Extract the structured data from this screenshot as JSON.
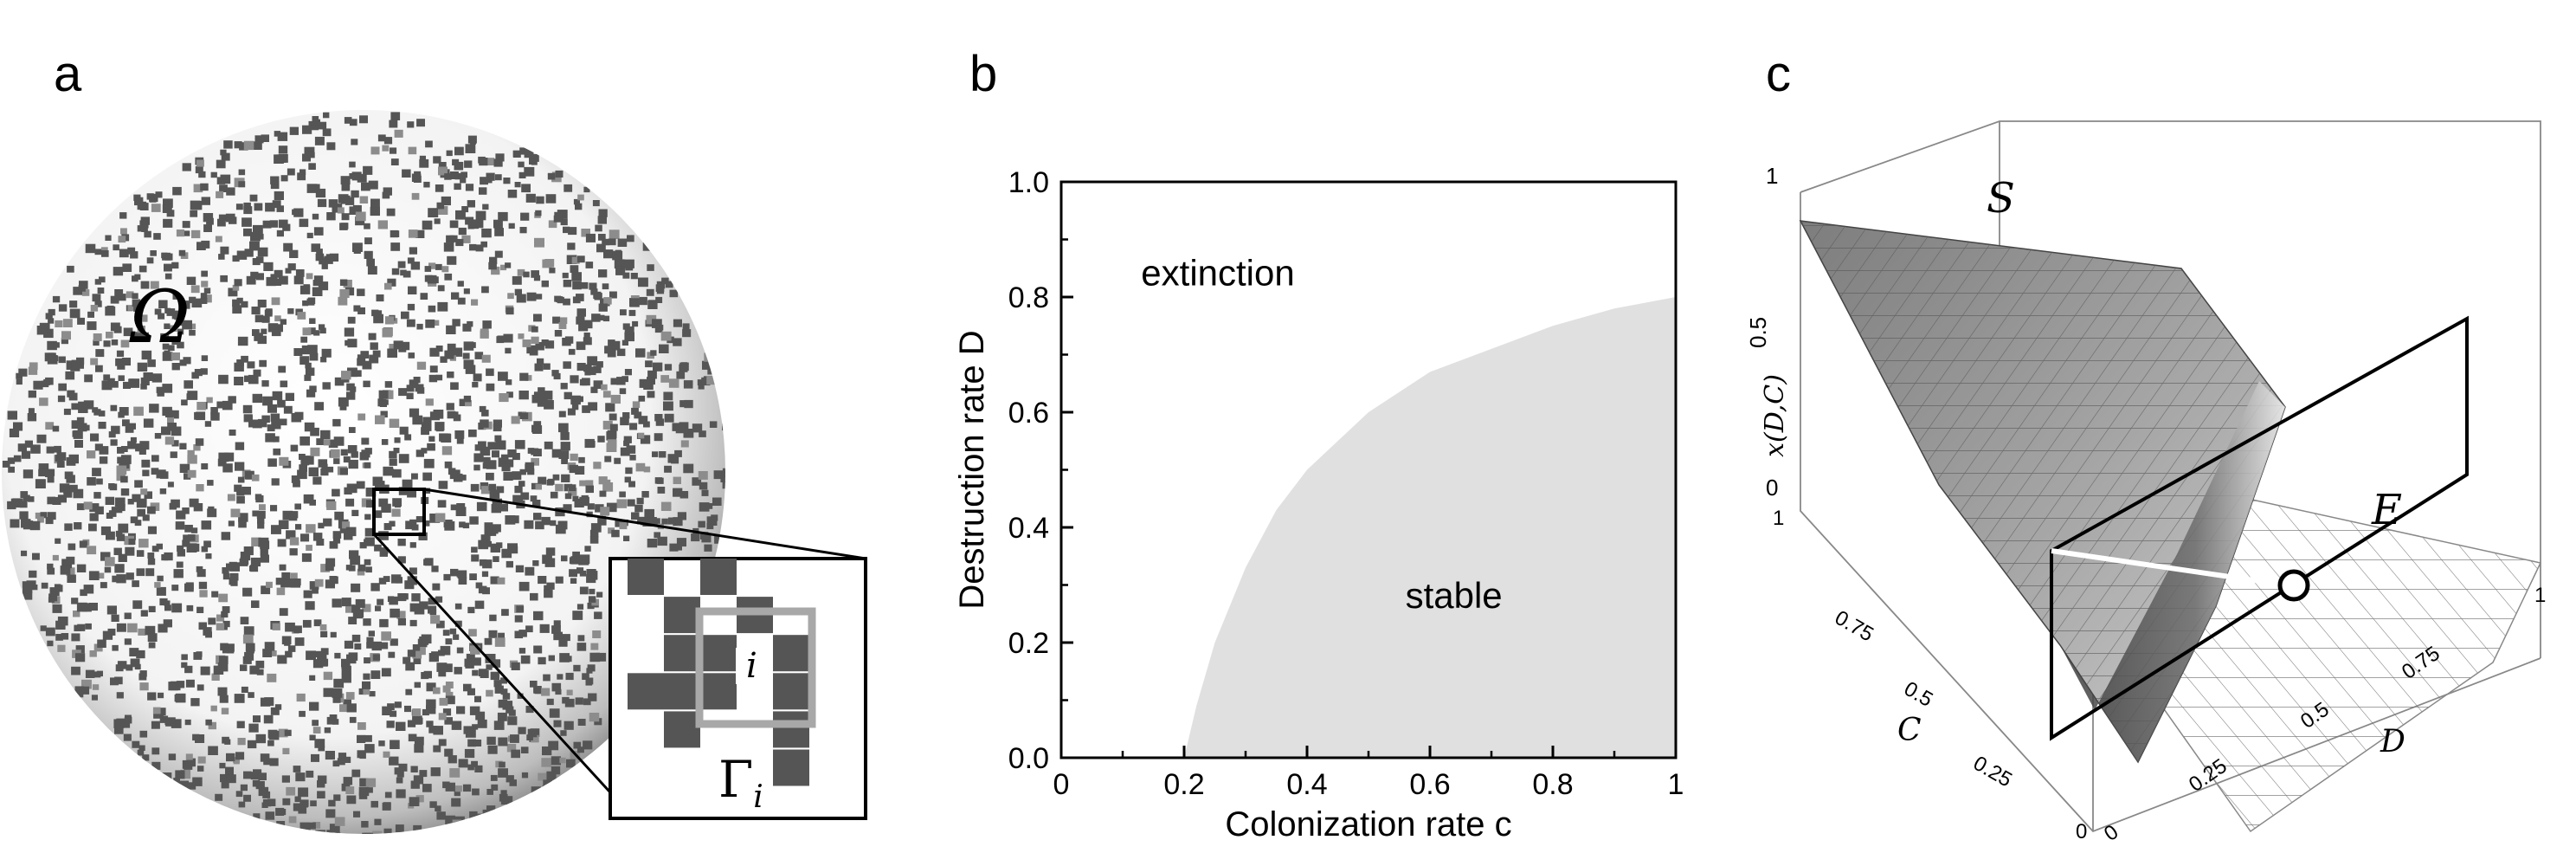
{
  "panels": {
    "a": {
      "letter": "a",
      "omega": "Ω",
      "cell": "i",
      "gamma": "Γ",
      "gamma_sub": "i"
    },
    "b": {
      "letter": "b"
    },
    "c": {
      "letter": "c",
      "surface_label": "S",
      "extinction_label": "E",
      "z_axis": "x(D,C)",
      "c_axis": "C",
      "d_axis": "D",
      "z_ticks": [
        "1",
        "0.5",
        "0"
      ],
      "c_ticks": [
        "1",
        "0.75",
        "0.5",
        "0.25",
        "0"
      ],
      "d_ticks": [
        "0",
        "0.25",
        "0.5",
        "0.75",
        "1"
      ]
    }
  },
  "chart_data": {
    "type": "area",
    "xlabel": "Colonization rate c",
    "ylabel": "Destruction rate D",
    "xlim": [
      0,
      1
    ],
    "ylim": [
      0,
      1
    ],
    "x_ticks": [
      "0",
      "0.2",
      "0.4",
      "0.6",
      "0.8",
      "1"
    ],
    "y_ticks": [
      "0.0",
      "0.2",
      "0.4",
      "0.6",
      "0.8",
      "1.0"
    ],
    "regions": [
      {
        "name": "extinction",
        "label": "extinction"
      },
      {
        "name": "stable",
        "label": "stable"
      }
    ],
    "boundary": {
      "x": [
        0.2,
        0.22,
        0.25,
        0.3,
        0.35,
        0.4,
        0.5,
        0.6,
        0.7,
        0.8,
        0.9,
        1.0
      ],
      "y": [
        0.0,
        0.09,
        0.2,
        0.33,
        0.43,
        0.5,
        0.6,
        0.67,
        0.71,
        0.75,
        0.78,
        0.8
      ]
    }
  }
}
